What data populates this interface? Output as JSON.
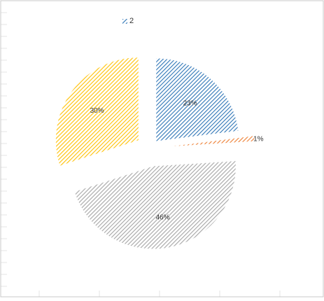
{
  "chart_data": {
    "type": "pie",
    "title": "",
    "legend": {
      "placement": "top",
      "entries": [
        "2"
      ]
    },
    "grid": true,
    "slices": [
      {
        "value": 23,
        "label": "23%",
        "color": "#2e75b6"
      },
      {
        "value": 1,
        "label": "1%",
        "color": "#ed7d31"
      },
      {
        "value": 46,
        "label": "46%",
        "color": "#a5a5a5"
      },
      {
        "value": 30,
        "label": "30%",
        "color": "#ffc000"
      }
    ],
    "fill_style": "diagonal-hatch",
    "exploded": true
  }
}
